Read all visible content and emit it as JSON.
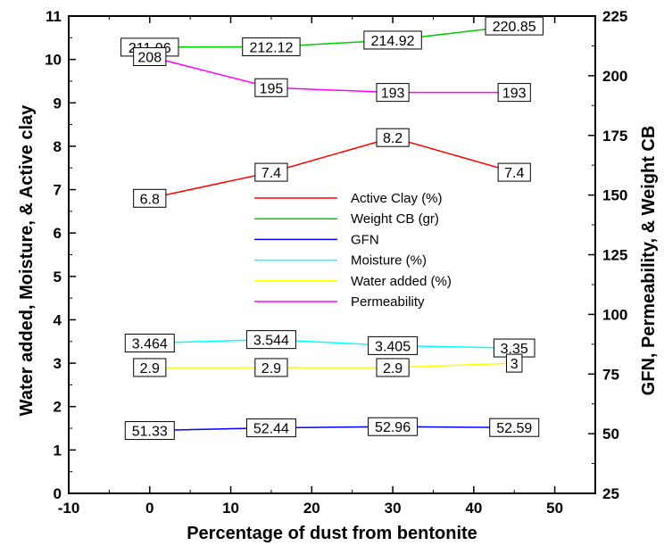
{
  "chart_data": {
    "type": "line",
    "title": "",
    "xlabel": "Percentage of dust from bentonite",
    "ylabel_left": "Water added, Moisture, & Active clay",
    "ylabel_right": "GFN, Permeability, & Weight CB",
    "xlim": [
      -10,
      55
    ],
    "ylim_left": [
      0,
      11
    ],
    "ylim_right": [
      25,
      225
    ],
    "x_ticks": [
      "-10",
      "0",
      "10",
      "20",
      "30",
      "40",
      "50"
    ],
    "y_ticks_left": [
      "0",
      "1",
      "2",
      "3",
      "4",
      "5",
      "6",
      "7",
      "8",
      "9",
      "10",
      "11"
    ],
    "y_ticks_right": [
      "25",
      "50",
      "75",
      "100",
      "125",
      "150",
      "175",
      "200",
      "225"
    ],
    "x": [
      0,
      15,
      30,
      45
    ],
    "series": [
      {
        "name": "Active Clay (%)",
        "axis": "left",
        "color": "#ff0000",
        "values": [
          6.8,
          7.4,
          8.2,
          7.4
        ],
        "labels": [
          "6.8",
          "7.4",
          "8.2",
          "7.4"
        ]
      },
      {
        "name": "Weight CB (gr)",
        "axis": "right",
        "color": "#00cc00",
        "values": [
          211.96,
          212.12,
          214.92,
          220.85
        ],
        "labels": [
          "211.96",
          "212.12",
          "214.92",
          "220.85"
        ]
      },
      {
        "name": "GFN",
        "axis": "right",
        "color": "#0000ff",
        "values": [
          51.33,
          52.44,
          52.96,
          52.59
        ],
        "labels": [
          "51.33",
          "52.44",
          "52.96",
          "52.59"
        ]
      },
      {
        "name": "Moisture (%)",
        "axis": "left",
        "color": "#00ffff",
        "values": [
          3.464,
          3.544,
          3.405,
          3.35
        ],
        "labels": [
          "3.464",
          "3.544",
          "3.405",
          "3.35"
        ]
      },
      {
        "name": "Water added (%)",
        "axis": "left",
        "color": "#ffff00",
        "values": [
          2.9,
          2.9,
          2.9,
          3
        ],
        "labels": [
          "2.9",
          "2.9",
          "2.9",
          "3"
        ]
      },
      {
        "name": "Permeability",
        "axis": "right",
        "color": "#ff00ff",
        "values": [
          208,
          195,
          193,
          193
        ],
        "labels": [
          "208",
          "195",
          "193",
          "193"
        ]
      }
    ],
    "legend": "inside-center",
    "grid": false
  }
}
